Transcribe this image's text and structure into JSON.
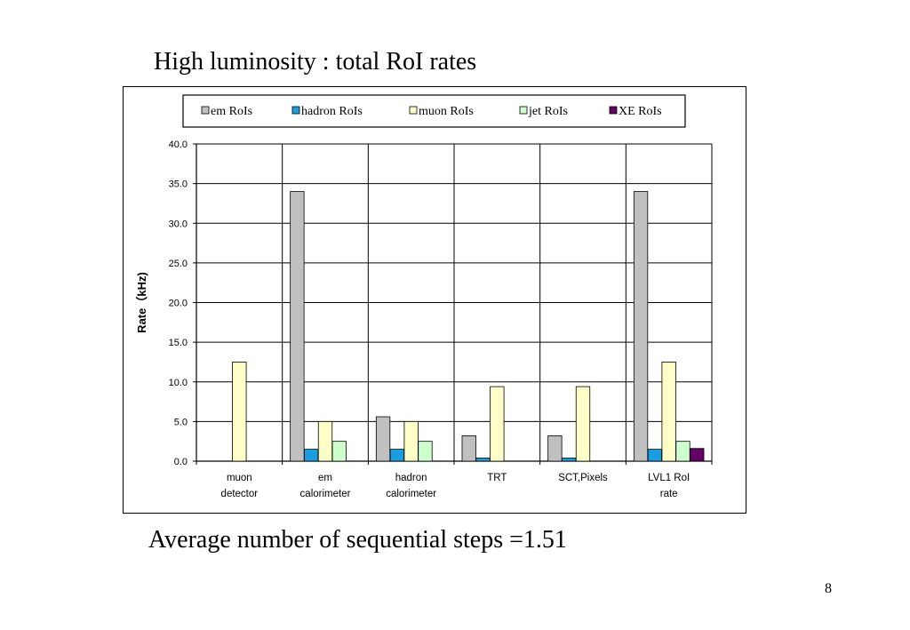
{
  "slide": {
    "title": "High luminosity : total RoI rates",
    "subtitle": "Average number of sequential steps =1.51",
    "page_number": "8"
  },
  "chart_data": {
    "type": "bar",
    "categories": [
      [
        "muon",
        "detector"
      ],
      [
        "em",
        "calorimeter"
      ],
      [
        "hadron",
        "calorimeter"
      ],
      [
        "TRT"
      ],
      [
        "SCT,Pixels"
      ],
      [
        "LVL1 RoI",
        "rate"
      ]
    ],
    "series": [
      {
        "name": "em RoIs",
        "color": "#c0c0c0",
        "values": [
          0,
          34.0,
          5.6,
          3.2,
          3.2,
          34.0
        ]
      },
      {
        "name": "hadron RoIs",
        "color": "#1a9ee0",
        "values": [
          0,
          1.5,
          1.5,
          0.4,
          0.4,
          1.5
        ]
      },
      {
        "name": "muon RoIs",
        "color": "#ffffc8",
        "values": [
          12.5,
          5.0,
          5.0,
          9.4,
          9.4,
          12.5
        ]
      },
      {
        "name": "jet RoIs",
        "color": "#ccffcc",
        "values": [
          0,
          2.5,
          2.5,
          0,
          0,
          2.5
        ]
      },
      {
        "name": "XE RoIs",
        "color": "#660066",
        "values": [
          0,
          0,
          0,
          0,
          0,
          1.6
        ]
      }
    ],
    "ylabel": "Rate（kHz)",
    "ylim": [
      0,
      40
    ],
    "yticks": [
      "0.0",
      "5.0",
      "10.0",
      "15.0",
      "20.0",
      "25.0",
      "30.0",
      "35.0",
      "40.0"
    ],
    "grid": true,
    "legend_position": "top"
  }
}
